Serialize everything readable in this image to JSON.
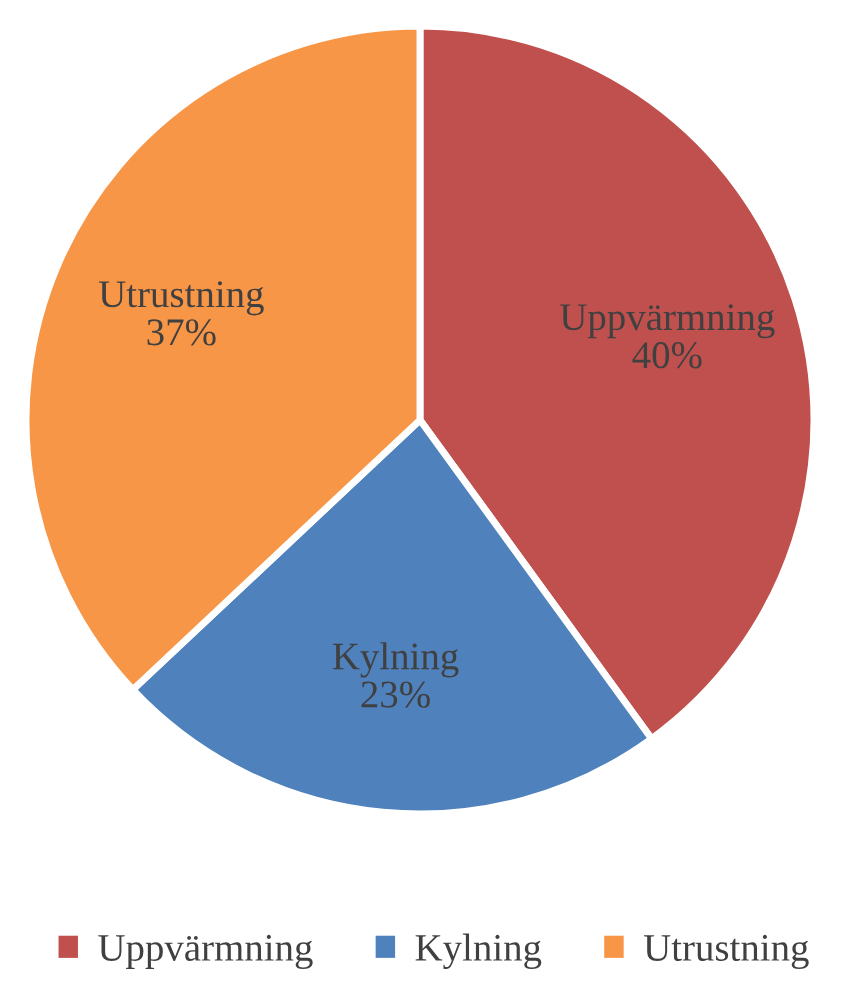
{
  "chart_data": {
    "type": "pie",
    "categories": [
      "Uppvärmning",
      "Kylning",
      "Utrustning"
    ],
    "values": [
      40,
      23,
      37
    ],
    "colors": [
      "#c0504d",
      "#4f81bd",
      "#f79646"
    ],
    "value_labels": [
      "40%",
      "23%",
      "37%"
    ],
    "legend": "bottom"
  }
}
